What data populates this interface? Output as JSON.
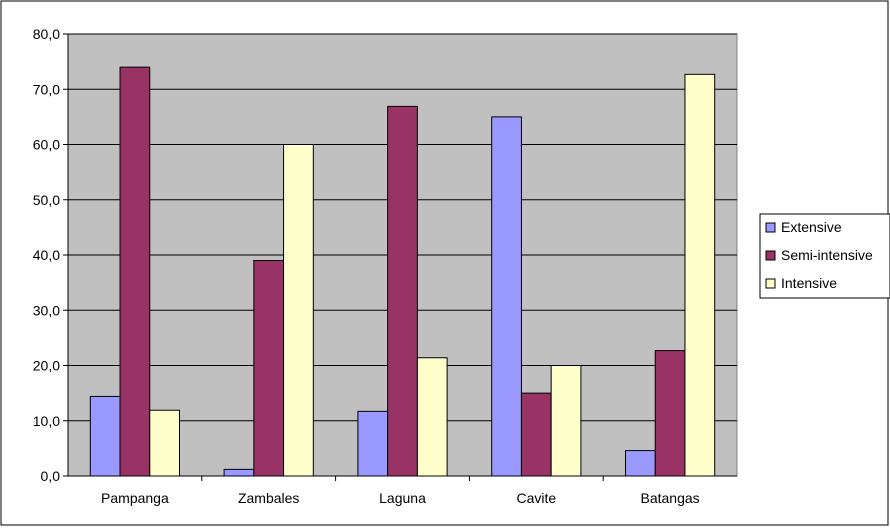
{
  "chart_data": {
    "type": "bar",
    "categories": [
      "Pampanga",
      "Zambales",
      "Laguna",
      "Cavite",
      "Batangas"
    ],
    "series": [
      {
        "name": "Extensive",
        "color": "#9999ff",
        "values": [
          14.4,
          1.2,
          11.7,
          65.0,
          4.6
        ]
      },
      {
        "name": "Semi-intensive",
        "color": "#993366",
        "values": [
          74.0,
          39.0,
          66.9,
          15.0,
          22.7
        ]
      },
      {
        "name": "Intensive",
        "color": "#ffffcc",
        "values": [
          11.9,
          60.0,
          21.4,
          20.0,
          72.7
        ]
      }
    ],
    "y_ticks": [
      "0,0",
      "10,0",
      "20,0",
      "30,0",
      "40,0",
      "50,0",
      "60,0",
      "70,0",
      "80,0"
    ],
    "ylim": [
      0,
      80
    ],
    "grid": true,
    "legend_position": "right",
    "plot_background": "#c0c0c0",
    "title": "",
    "xlabel": "",
    "ylabel": ""
  }
}
